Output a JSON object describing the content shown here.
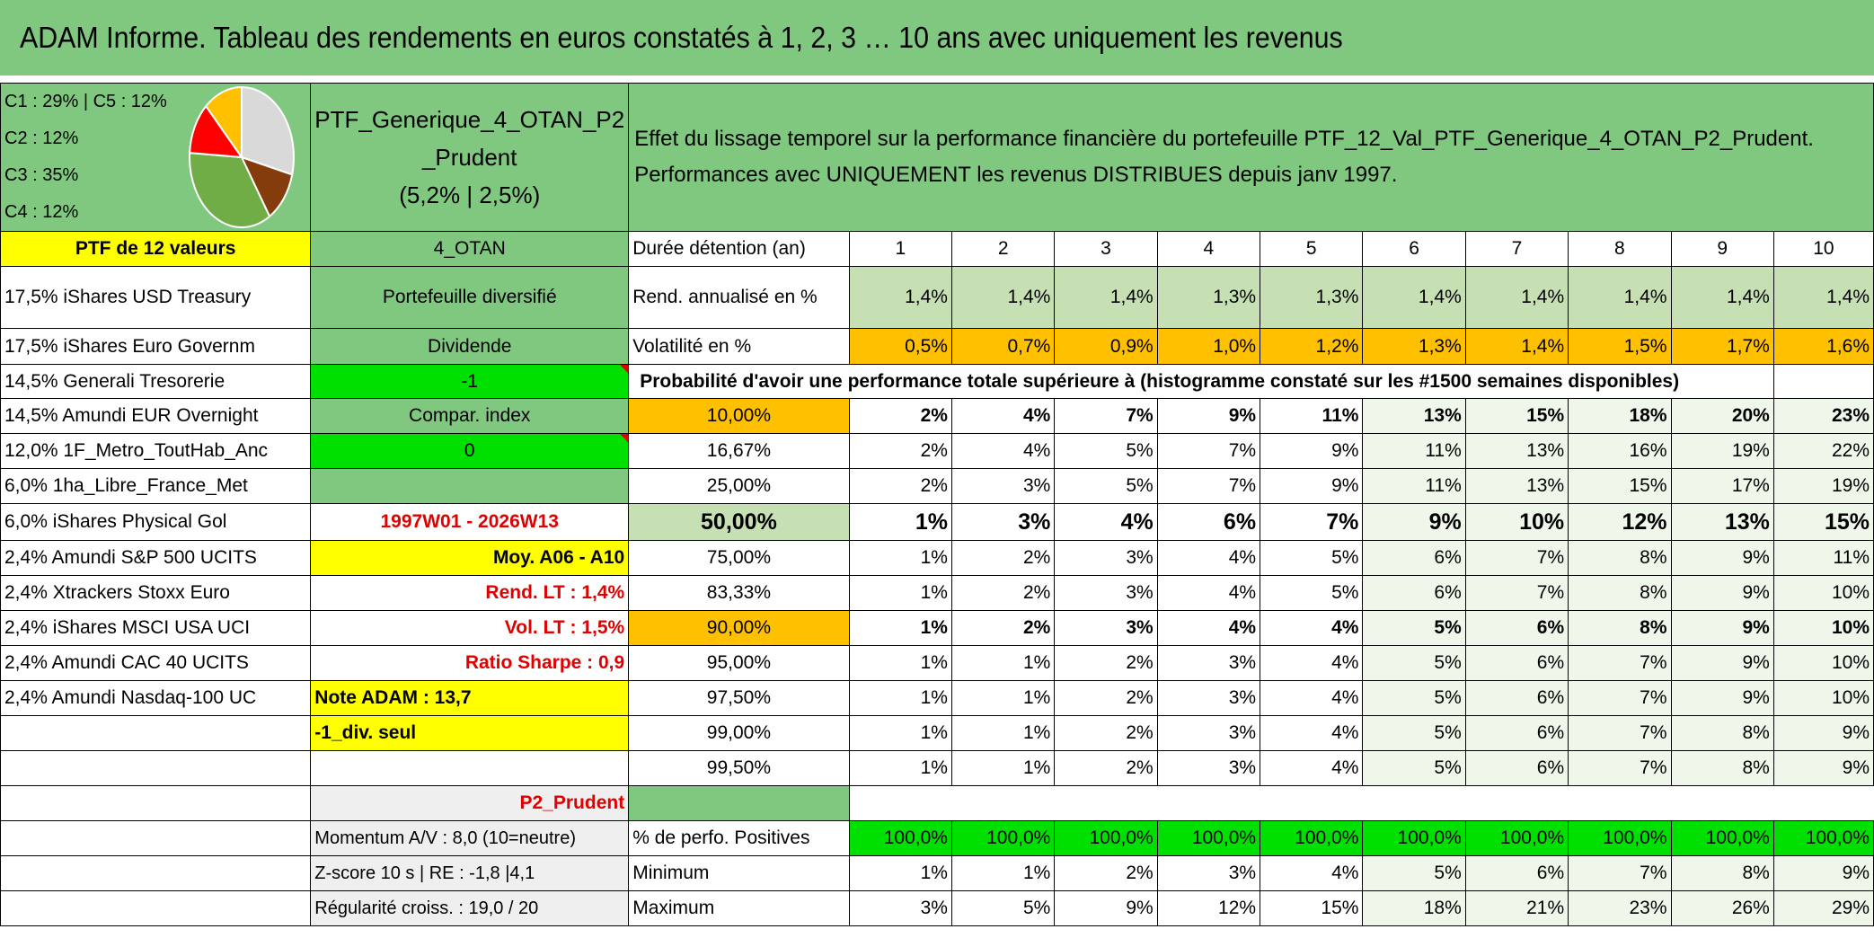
{
  "title": "ADAM Informe. Tableau des rendements en euros constatés à 1, 2, 3 … 10 ans avec uniquement les revenus",
  "legend": [
    "C1 : 29% | C5 : 12%",
    "C2 : 12%",
    "C3 : 35%",
    "C4 : 12%"
  ],
  "pie": {
    "slices": [
      {
        "value": 29,
        "color": "#d9d9d9"
      },
      {
        "value": 12,
        "color": "#843c0c"
      },
      {
        "value": 35,
        "color": "#70ad47"
      },
      {
        "value": 12,
        "color": "#ff0000"
      },
      {
        "value": 12,
        "color": "#ffc000"
      }
    ]
  },
  "portfolio": {
    "name": "PTF_Generique_4_OTAN_P2_Prudent",
    "name_line1": "PTF_Generique_4_OTAN_P2",
    "name_line2": "_Prudent",
    "stats": "(5,2% | 2,5%)",
    "count_label": "PTF de 12 valeurs",
    "code": "4_OTAN"
  },
  "description": {
    "line1": "Effet du lissage temporel sur la performance financière du portefeuille PTF_12_Val_PTF_Generique_4_OTAN_P2_Prudent.",
    "line2": "Performances avec UNIQUEMENT les revenus DISTRIBUES depuis janv 1997."
  },
  "holdings": [
    "17,5% iShares USD Treasury",
    "17,5% iShares Euro Governm",
    "14,5% Generali Tresorerie",
    "14,5% Amundi EUR Overnight",
    "12,0% 1F_Metro_ToutHab_Anc",
    "6,0% 1ha_Libre_France_Met",
    "6,0% iShares Physical Gol",
    "2,4% Amundi S&P 500 UCITS",
    "2,4% Xtrackers Stoxx Euro",
    "2,4% iShares MSCI USA UCI",
    "2,4% Amundi CAC 40 UCITS",
    "2,4% Amundi Nasdaq-100 UC"
  ],
  "info": {
    "diversified": "Portefeuille diversifié",
    "dividend": "Dividende",
    "dividend_val": "-1",
    "compar": "Compar. index",
    "compar_val": "0",
    "period": "1997W01 - 2026W13",
    "moy": "Moy. A06 - A10",
    "rend_lt": "Rend. LT : 1,4%",
    "vol_lt": "Vol. LT : 1,5%",
    "sharpe": "Ratio Sharpe : 0,9",
    "note": "Note ADAM : 13,7",
    "div_seul": "-1_div. seul",
    "profile": "P2_Prudent",
    "momentum": "Momentum A/V : 8,0 (10=neutre)",
    "zscore": "Z-score 10 s | RE : -1,8 |4,1",
    "regularite": "Régularité croiss. : 19,0 / 20"
  },
  "table": {
    "duration_label": "Durée détention (an)",
    "years": [
      "1",
      "2",
      "3",
      "4",
      "5",
      "6",
      "7",
      "8",
      "9",
      "10"
    ],
    "rend_label": "Rend. annualisé en %",
    "rend": [
      "1,4%",
      "1,4%",
      "1,4%",
      "1,3%",
      "1,3%",
      "1,4%",
      "1,4%",
      "1,4%",
      "1,4%",
      "1,4%"
    ],
    "vol_label": "Volatilité en %",
    "vol": [
      "0,5%",
      "0,7%",
      "0,9%",
      "1,0%",
      "1,2%",
      "1,3%",
      "1,4%",
      "1,5%",
      "1,7%",
      "1,6%"
    ],
    "prob_label": "Probabilité d'avoir une performance totale supérieure à (histogramme constaté sur les #1500 semaines disponibles)",
    "prob_rows": [
      {
        "pct": "10,00%",
        "vals": [
          "2%",
          "4%",
          "7%",
          "9%",
          "11%",
          "13%",
          "15%",
          "18%",
          "20%",
          "23%"
        ]
      },
      {
        "pct": "16,67%",
        "vals": [
          "2%",
          "4%",
          "5%",
          "7%",
          "9%",
          "11%",
          "13%",
          "16%",
          "19%",
          "22%"
        ]
      },
      {
        "pct": "25,00%",
        "vals": [
          "2%",
          "3%",
          "5%",
          "7%",
          "9%",
          "11%",
          "13%",
          "15%",
          "17%",
          "19%"
        ]
      },
      {
        "pct": "50,00%",
        "vals": [
          "1%",
          "3%",
          "4%",
          "6%",
          "7%",
          "9%",
          "10%",
          "12%",
          "13%",
          "15%"
        ]
      },
      {
        "pct": "75,00%",
        "vals": [
          "1%",
          "2%",
          "3%",
          "4%",
          "5%",
          "6%",
          "7%",
          "8%",
          "9%",
          "11%"
        ]
      },
      {
        "pct": "83,33%",
        "vals": [
          "1%",
          "2%",
          "3%",
          "4%",
          "5%",
          "6%",
          "7%",
          "8%",
          "9%",
          "10%"
        ]
      },
      {
        "pct": "90,00%",
        "vals": [
          "1%",
          "2%",
          "3%",
          "4%",
          "4%",
          "5%",
          "6%",
          "8%",
          "9%",
          "10%"
        ]
      },
      {
        "pct": "95,00%",
        "vals": [
          "1%",
          "1%",
          "2%",
          "3%",
          "4%",
          "5%",
          "6%",
          "7%",
          "9%",
          "10%"
        ]
      },
      {
        "pct": "97,50%",
        "vals": [
          "1%",
          "1%",
          "2%",
          "3%",
          "4%",
          "5%",
          "6%",
          "7%",
          "9%",
          "10%"
        ]
      },
      {
        "pct": "99,00%",
        "vals": [
          "1%",
          "1%",
          "2%",
          "3%",
          "4%",
          "5%",
          "6%",
          "7%",
          "8%",
          "9%"
        ]
      },
      {
        "pct": "99,50%",
        "vals": [
          "1%",
          "1%",
          "2%",
          "3%",
          "4%",
          "5%",
          "6%",
          "7%",
          "8%",
          "9%"
        ]
      }
    ],
    "pos_label": "% de perfo. Positives",
    "pos": [
      "100,0%",
      "100,0%",
      "100,0%",
      "100,0%",
      "100,0%",
      "100,0%",
      "100,0%",
      "100,0%",
      "100,0%",
      "100,0%"
    ],
    "min_label": "Minimum",
    "min": [
      "1%",
      "1%",
      "2%",
      "3%",
      "4%",
      "5%",
      "6%",
      "7%",
      "8%",
      "9%"
    ],
    "max_label": "Maximum",
    "max": [
      "3%",
      "5%",
      "9%",
      "12%",
      "15%",
      "18%",
      "21%",
      "23%",
      "26%",
      "29%"
    ]
  }
}
